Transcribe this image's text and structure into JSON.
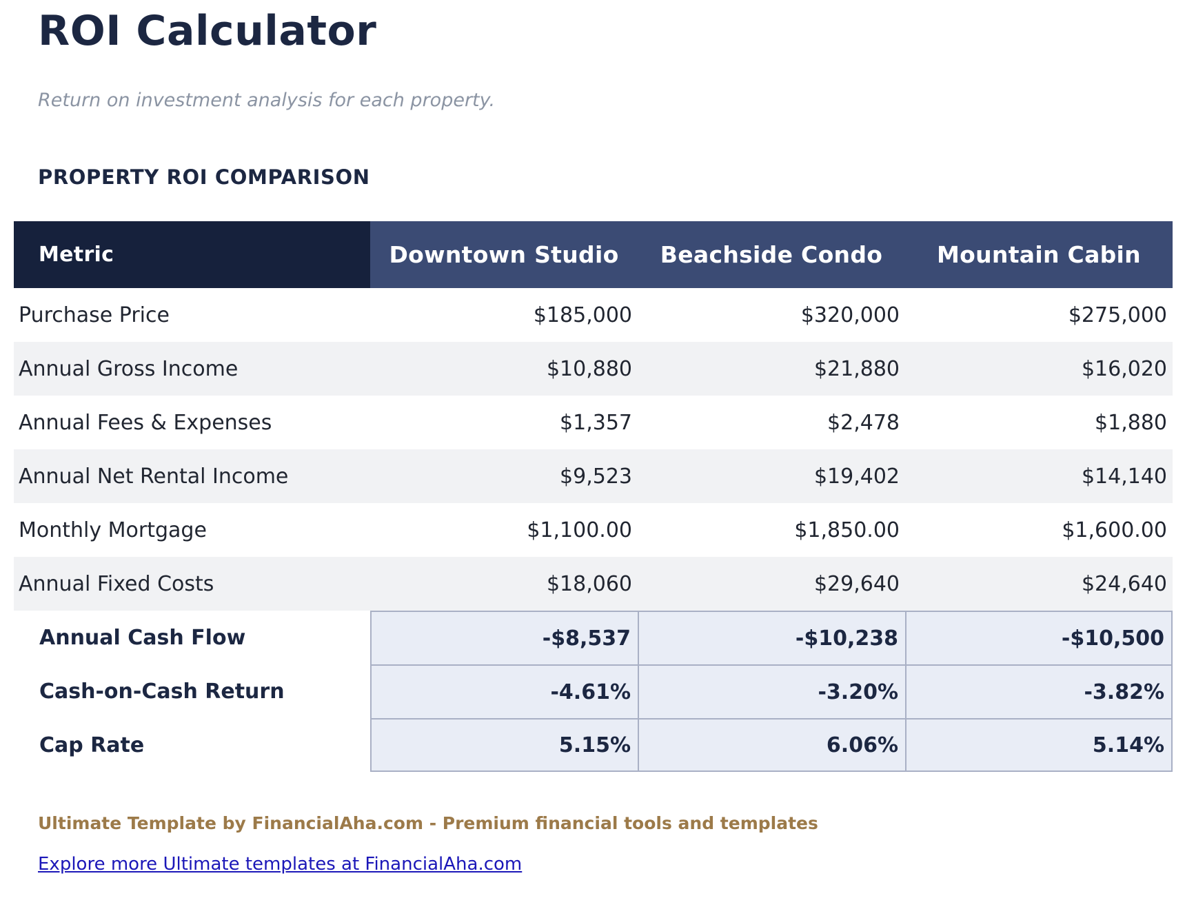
{
  "page": {
    "title": "ROI Calculator",
    "subtitle": "Return on investment analysis for each property.",
    "section_title": "PROPERTY ROI COMPARISON"
  },
  "table": {
    "columns": [
      "Metric",
      "Downtown Studio",
      "Beachside Condo",
      "Mountain Cabin"
    ],
    "rows": [
      {
        "label": "Purchase Price",
        "values": [
          "$185,000",
          "$320,000",
          "$275,000"
        ]
      },
      {
        "label": "Annual Gross Income",
        "values": [
          "$10,880",
          "$21,880",
          "$16,020"
        ]
      },
      {
        "label": "Annual Fees & Expenses",
        "values": [
          "$1,357",
          "$2,478",
          "$1,880"
        ]
      },
      {
        "label": "Annual Net Rental Income",
        "values": [
          "$9,523",
          "$19,402",
          "$14,140"
        ]
      },
      {
        "label": "Monthly Mortgage",
        "values": [
          "$1,100.00",
          "$1,850.00",
          "$1,600.00"
        ]
      },
      {
        "label": "Annual Fixed Costs",
        "values": [
          "$18,060",
          "$29,640",
          "$24,640"
        ]
      }
    ],
    "summary_rows": [
      {
        "label": "Annual Cash Flow",
        "values": [
          "-$8,537",
          "-$10,238",
          "-$10,500"
        ]
      },
      {
        "label": "Cash-on-Cash Return",
        "values": [
          "-4.61%",
          "-3.20%",
          "-3.82%"
        ]
      },
      {
        "label": "Cap Rate",
        "values": [
          "5.15%",
          "6.06%",
          "5.14%"
        ]
      }
    ]
  },
  "footer": {
    "branding": "Ultimate Template by FinancialAha.com - Premium financial tools and templates",
    "link": "Explore more Ultimate templates at FinancialAha.com"
  },
  "colors": {
    "navy_text": "#1c2742",
    "header_dark_bg": "#16213c",
    "header_blue_bg": "#3b4b74",
    "stripe_gray": "#f1f2f4",
    "summary_bg": "#e9edf6",
    "summary_border": "#a9b0c5",
    "subtitle_gray": "#8b94a3",
    "brand_brown": "#9c7a49",
    "link_blue": "#1b17b8"
  }
}
